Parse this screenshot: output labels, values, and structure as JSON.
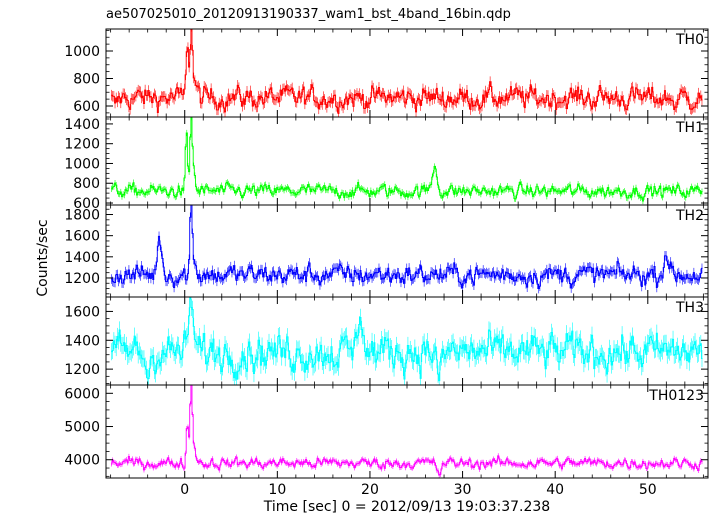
{
  "figure": {
    "title": "ae507025010_20120913190337_wam1_bst_4band_16bin.qdp",
    "ylabel": "Counts/sec",
    "xlabel": "Time [sec] 0 = 2012/09/13 19:03:37.238"
  },
  "chart_data": [
    {
      "type": "line",
      "name": "TH0",
      "color": "#ff0000",
      "xlim": [
        -8.5,
        56.5
      ],
      "ylim": [
        520,
        1160
      ],
      "yticks": [
        600,
        800,
        1000
      ],
      "xticks": [
        0,
        10,
        20,
        30,
        40,
        50
      ],
      "baseline": 660,
      "noise": 55,
      "features": [
        {
          "x": 0.3,
          "y": 1080
        },
        {
          "x": 0.7,
          "y": 1160
        },
        {
          "x": 1.0,
          "y": 790
        },
        {
          "x": -7.5,
          "y": 600
        },
        {
          "x": 53.0,
          "y": 620
        }
      ]
    },
    {
      "type": "line",
      "name": "TH1",
      "color": "#00ff00",
      "xlim": [
        -8.5,
        56.5
      ],
      "ylim": [
        580,
        1470
      ],
      "yticks": [
        600,
        800,
        1000,
        1200,
        1400
      ],
      "xticks": [
        0,
        10,
        20,
        30,
        40,
        50
      ],
      "baseline": 720,
      "noise": 45,
      "features": [
        {
          "x": 0.2,
          "y": 1250
        },
        {
          "x": 0.7,
          "y": 1460
        },
        {
          "x": 1.0,
          "y": 950
        },
        {
          "x": 27.0,
          "y": 980
        }
      ]
    },
    {
      "type": "line",
      "name": "TH2",
      "color": "#0000ff",
      "xlim": [
        -8.5,
        56.5
      ],
      "ylim": [
        1020,
        1890
      ],
      "yticks": [
        1200,
        1400,
        1600,
        1800
      ],
      "xticks": [
        0,
        10,
        20,
        30,
        40,
        50
      ],
      "baseline": 1230,
      "noise": 65,
      "features": [
        {
          "x": -2.7,
          "y": 1560
        },
        {
          "x": 0.7,
          "y": 1880
        },
        {
          "x": 1.0,
          "y": 1380
        },
        {
          "x": 52.0,
          "y": 1460
        }
      ]
    },
    {
      "type": "line",
      "name": "TH3",
      "color": "#00ffff",
      "xlim": [
        -8.5,
        56.5
      ],
      "ylim": [
        1090,
        1700
      ],
      "yticks": [
        1200,
        1400,
        1600
      ],
      "xticks": [
        0,
        10,
        20,
        30,
        40,
        50
      ],
      "baseline": 1320,
      "noise": 85,
      "features": [
        {
          "x": 0.7,
          "y": 1660
        },
        {
          "x": 19.0,
          "y": 1620
        },
        {
          "x": 27.5,
          "y": 1140
        },
        {
          "x": -4.0,
          "y": 1180
        }
      ]
    },
    {
      "type": "line",
      "name": "TH0123",
      "color": "#ff00ff",
      "xlim": [
        -8.5,
        56.5
      ],
      "ylim": [
        3450,
        6250
      ],
      "yticks": [
        4000,
        5000,
        6000
      ],
      "xticks": [
        0,
        10,
        20,
        30,
        40,
        50
      ],
      "baseline": 3900,
      "noise": 110,
      "features": [
        {
          "x": 0.3,
          "y": 5100
        },
        {
          "x": 0.7,
          "y": 6200
        },
        {
          "x": 1.0,
          "y": 4400
        },
        {
          "x": 27.5,
          "y": 3600
        }
      ]
    }
  ]
}
